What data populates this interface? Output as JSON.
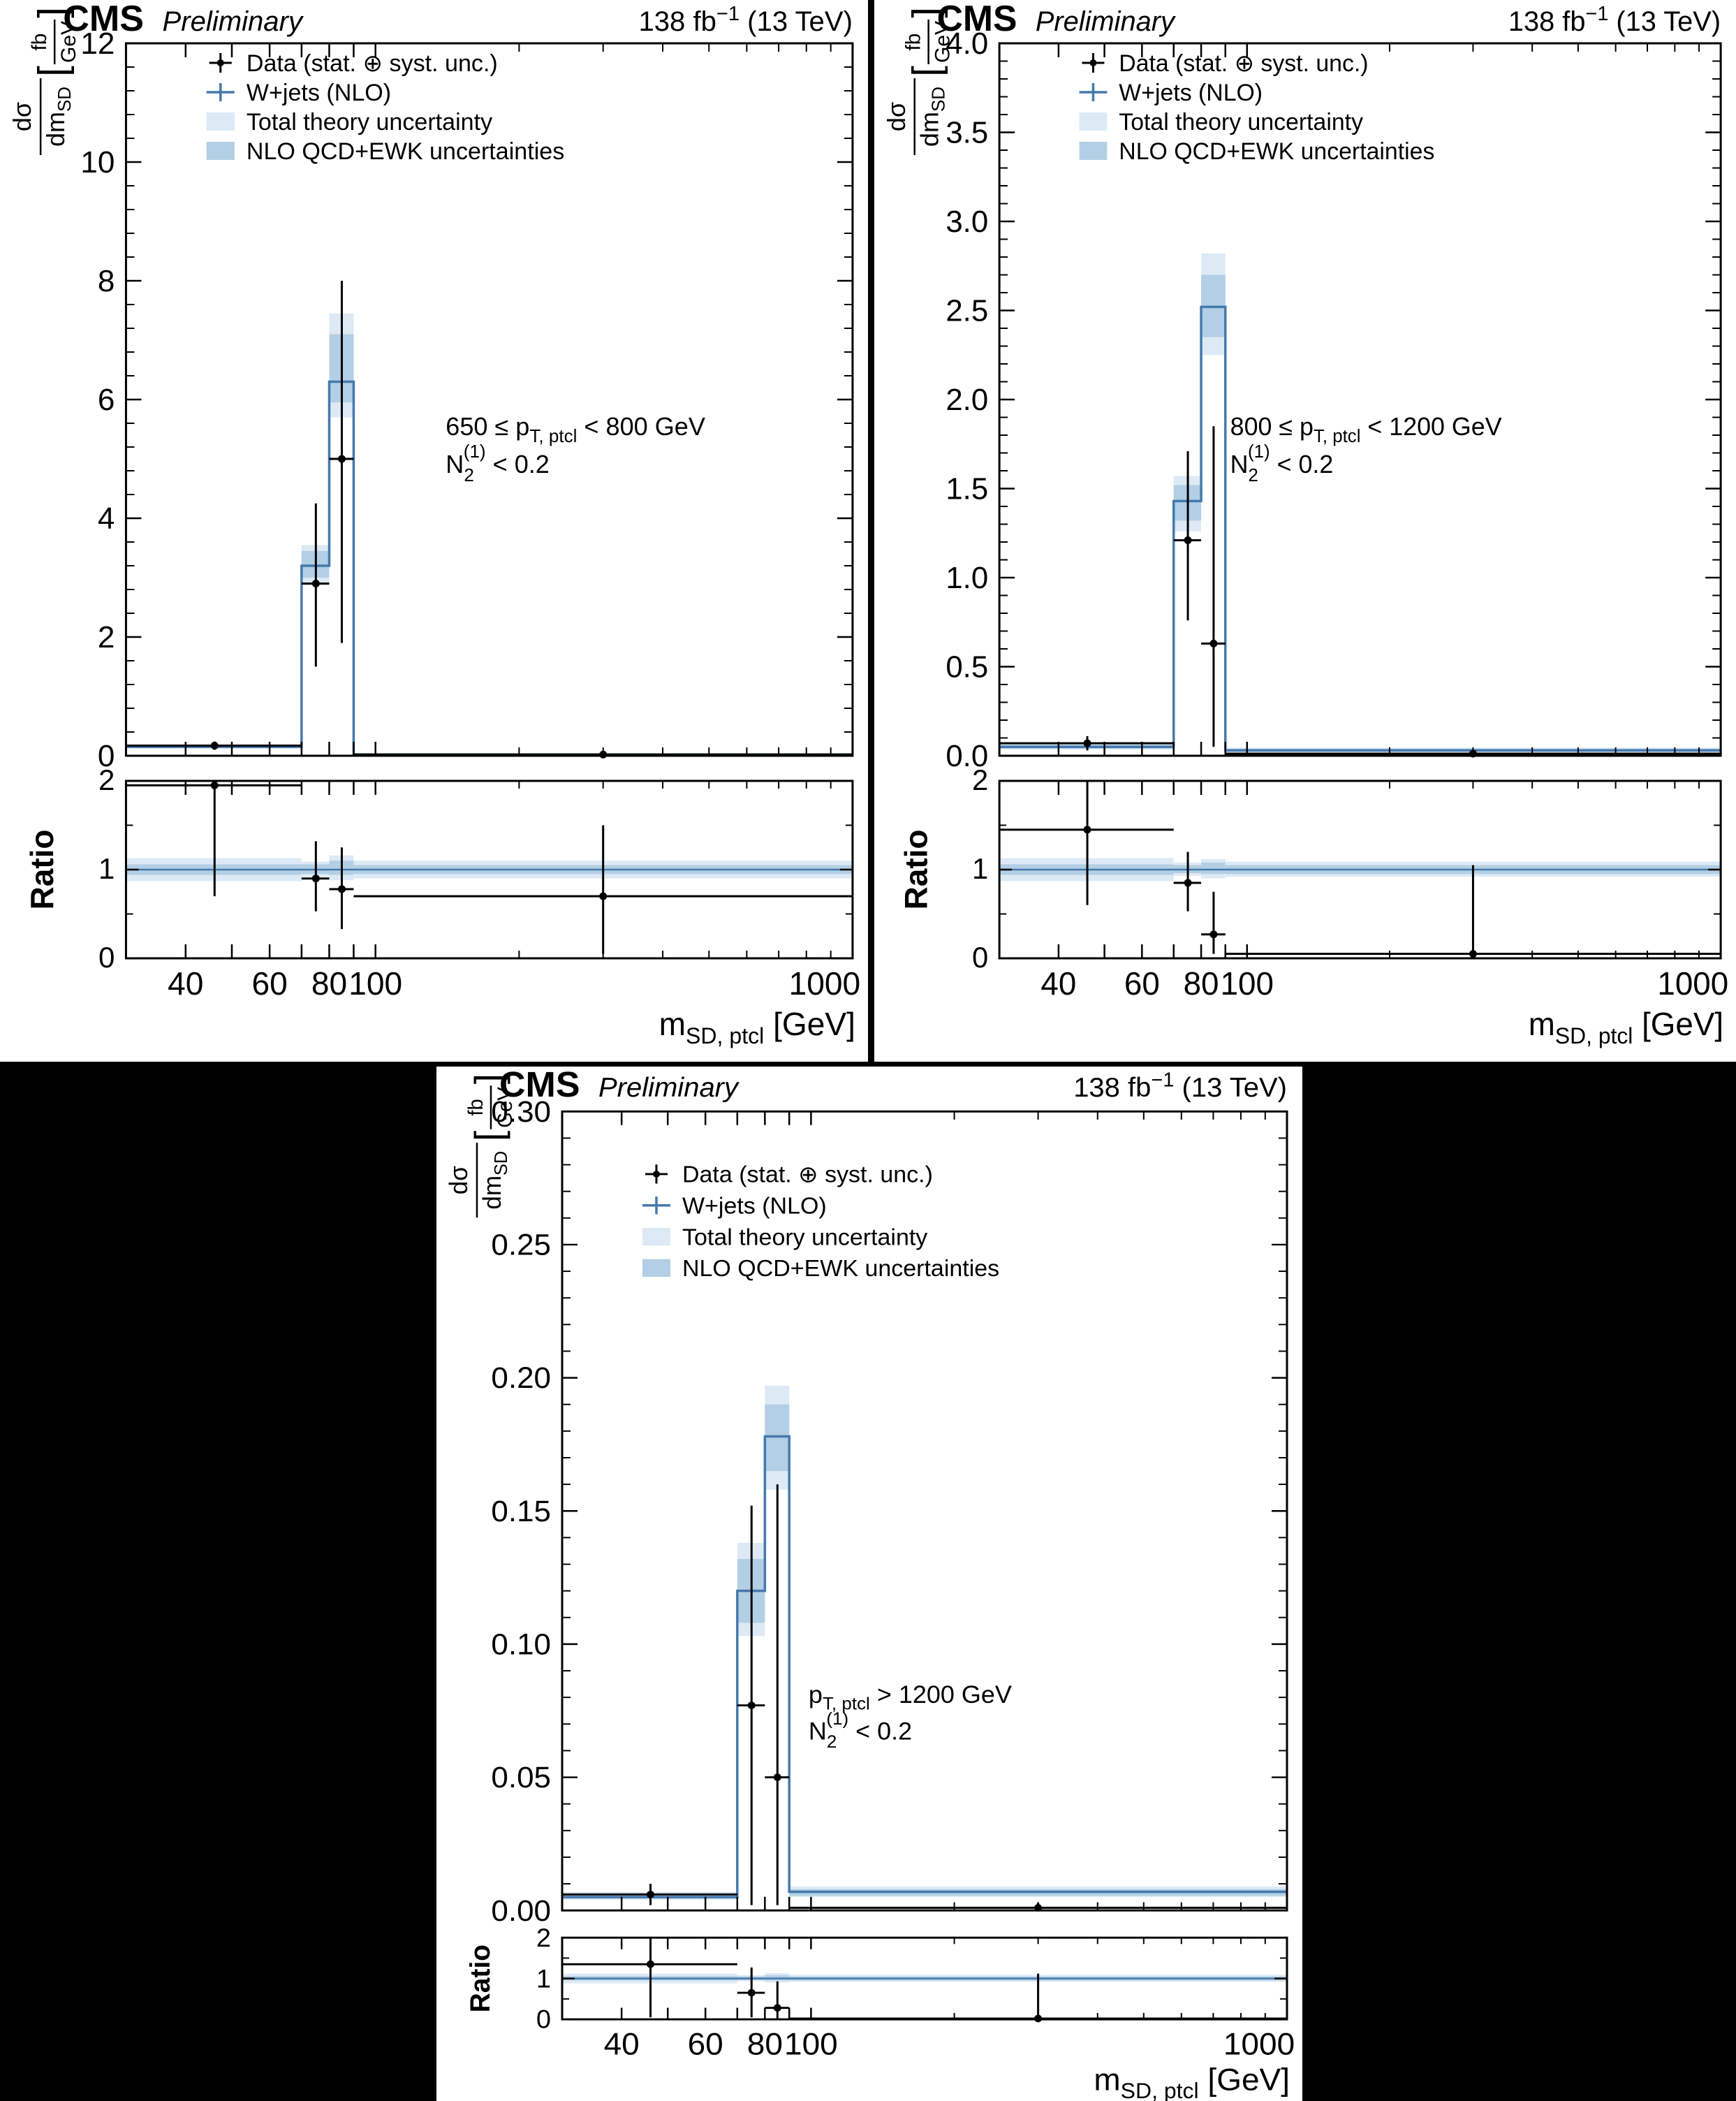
{
  "page": {
    "background": "#000000",
    "panel_background": "#ffffff"
  },
  "colors": {
    "histogram_line": "#4579ad",
    "band_total": "#ddeaf5",
    "band_nlo": "#b3cfe5",
    "data_marker": "#000000"
  },
  "shared": {
    "header": {
      "experiment": "CMS",
      "label": "Preliminary",
      "lumi_main": "138 fb",
      "lumi_sup": "−1",
      "lumi_rest": " (13 TeV)"
    },
    "legend": [
      "Data (stat. ⊕ syst. unc.)",
      "W+jets (NLO)",
      "Total theory uncertainty",
      "NLO QCD+EWK uncertainties"
    ],
    "ylabel": {
      "num": "dσ",
      "den_main": "dm",
      "den_sub": "SD",
      "unit_num": "fb",
      "unit_den": "GeV"
    },
    "xlabel": {
      "main": "m",
      "sub": "SD, ptcl",
      "rest": " [GeV]"
    },
    "ratio_label": "Ratio",
    "xlim": [
      30,
      1000
    ],
    "xticks_labels": [
      40,
      60,
      80,
      100,
      1000
    ],
    "xticks_long": [
      40,
      50,
      60,
      70,
      80,
      90,
      100
    ],
    "xticks_short": [
      200,
      300,
      400,
      500,
      600,
      700,
      800,
      900
    ],
    "ratio_ylim": [
      0,
      2
    ],
    "ratio_yticks": [
      0,
      1,
      2
    ]
  },
  "chart_data": [
    {
      "name": "pt-650-800",
      "type": "bar",
      "title": "CMS Preliminary 138 fb−1 (13 TeV)",
      "xlabel": "m_SD,ptcl [GeV]",
      "ylabel": "dσ/dm_SD [fb/GeV]",
      "xscale": "log",
      "ylim": [
        0,
        12
      ],
      "ystep": 2,
      "ydecimals": 0,
      "bin_edges": [
        30,
        70,
        80,
        90,
        1000
      ],
      "wjets": [
        0.15,
        3.2,
        6.3,
        0.02
      ],
      "band_total_lo": [
        0.12,
        2.88,
        5.7,
        0.01
      ],
      "band_total_hi": [
        0.18,
        3.55,
        7.45,
        0.035
      ],
      "band_nlo_lo": [
        0.13,
        3.0,
        5.95,
        0.015
      ],
      "band_nlo_hi": [
        0.17,
        3.45,
        7.1,
        0.03
      ],
      "data": {
        "x": [
          46,
          75,
          85,
          300
        ],
        "y": [
          0.17,
          2.9,
          5.0,
          0.02
        ],
        "err_lo": [
          0.07,
          1.4,
          3.1,
          0.018
        ],
        "err_hi": [
          0.07,
          1.35,
          3.0,
          0.02
        ]
      },
      "ratio": {
        "y": [
          1.95,
          0.9,
          0.78,
          0.7
        ],
        "err_lo": [
          1.25,
          0.37,
          0.45,
          0.65
        ],
        "err_hi": [
          0.6,
          0.42,
          0.47,
          0.8
        ]
      },
      "ratio_band_total": [
        [
          0.87,
          1.13
        ],
        [
          0.92,
          1.09
        ],
        [
          0.88,
          1.16
        ],
        [
          0.9,
          1.1
        ]
      ],
      "ratio_band_nlo": [
        [
          0.94,
          1.06
        ],
        [
          0.95,
          1.06
        ],
        [
          0.94,
          1.1
        ],
        [
          0.95,
          1.05
        ]
      ],
      "annotation": {
        "line1_pre": "650 ≤ p",
        "line1_sub": "T, ptcl",
        "line1_post": " < 800 GeV",
        "line2_pre": "N",
        "line2_sub": "2",
        "line2_sup": "(1)",
        "line2_post": " < 0.2",
        "fx": 0.44,
        "fy": 0.55
      }
    },
    {
      "name": "pt-800-1200",
      "type": "bar",
      "title": "CMS Preliminary 138 fb−1 (13 TeV)",
      "xlabel": "m_SD,ptcl [GeV]",
      "ylabel": "dσ/dm_SD [fb/GeV]",
      "xscale": "log",
      "ylim": [
        0,
        4
      ],
      "ystep": 0.5,
      "ydecimals": 1,
      "bin_edges": [
        30,
        70,
        80,
        90,
        1000
      ],
      "wjets": [
        0.05,
        1.43,
        2.52,
        0.03
      ],
      "band_total_lo": [
        0.035,
        1.26,
        2.25,
        0.02
      ],
      "band_total_hi": [
        0.07,
        1.57,
        2.82,
        0.045
      ],
      "band_nlo_lo": [
        0.04,
        1.32,
        2.35,
        0.025
      ],
      "band_nlo_hi": [
        0.06,
        1.52,
        2.7,
        0.04
      ],
      "data": {
        "x": [
          46,
          75,
          85,
          300
        ],
        "y": [
          0.07,
          1.21,
          0.63,
          0.012
        ],
        "err_lo": [
          0.04,
          0.45,
          0.58,
          0.01
        ],
        "err_hi": [
          0.04,
          0.5,
          1.22,
          0.015
        ]
      },
      "ratio": {
        "y": [
          1.45,
          0.85,
          0.27,
          0.05
        ],
        "err_lo": [
          0.85,
          0.32,
          0.22,
          0.05
        ],
        "err_hi": [
          0.75,
          0.35,
          0.48,
          1.0
        ]
      },
      "ratio_band_total": [
        [
          0.87,
          1.13
        ],
        [
          0.93,
          1.08
        ],
        [
          0.9,
          1.12
        ],
        [
          0.92,
          1.09
        ]
      ],
      "ratio_band_nlo": [
        [
          0.94,
          1.06
        ],
        [
          0.96,
          1.05
        ],
        [
          0.95,
          1.08
        ],
        [
          0.95,
          1.05
        ]
      ],
      "annotation": {
        "line1_pre": "800 ≤ p",
        "line1_sub": "T, ptcl",
        "line1_post": " < 1200 GeV",
        "line2_pre": "N",
        "line2_sub": "2",
        "line2_sup": "(1)",
        "line2_post": " < 0.2",
        "fx": 0.32,
        "fy": 0.55
      }
    },
    {
      "name": "pt-gt-1200",
      "type": "bar",
      "title": "CMS Preliminary 138 fb−1 (13 TeV)",
      "xlabel": "m_SD,ptcl [GeV]",
      "ylabel": "dσ/dm_SD [fb/GeV]",
      "xscale": "log",
      "ylim": [
        0,
        0.3
      ],
      "ystep": 0.05,
      "ydecimals": 2,
      "bin_edges": [
        30,
        70,
        80,
        90,
        1000
      ],
      "wjets": [
        0.005,
        0.12,
        0.178,
        0.007
      ],
      "band_total_lo": [
        0.004,
        0.103,
        0.158,
        0.005
      ],
      "band_total_hi": [
        0.007,
        0.138,
        0.197,
        0.009
      ],
      "band_nlo_lo": [
        0.0045,
        0.108,
        0.165,
        0.0055
      ],
      "band_nlo_hi": [
        0.0065,
        0.132,
        0.19,
        0.008
      ],
      "data": {
        "x": [
          46,
          75,
          85,
          300
        ],
        "y": [
          0.006,
          0.077,
          0.05,
          0.001
        ],
        "err_lo": [
          0.004,
          0.075,
          0.048,
          0.001
        ],
        "err_hi": [
          0.004,
          0.075,
          0.11,
          0.002
        ]
      },
      "ratio": {
        "y": [
          1.35,
          0.65,
          0.28,
          0.02
        ],
        "err_lo": [
          1.3,
          0.6,
          0.27,
          0.02
        ],
        "err_hi": [
          0.65,
          0.62,
          0.65,
          1.1
        ]
      },
      "ratio_band_total": [
        [
          0.88,
          1.12
        ],
        [
          0.93,
          1.08
        ],
        [
          0.9,
          1.13
        ],
        [
          0.92,
          1.09
        ]
      ],
      "ratio_band_nlo": [
        [
          0.95,
          1.06
        ],
        [
          0.96,
          1.05
        ],
        [
          0.95,
          1.08
        ],
        [
          0.95,
          1.05
        ]
      ],
      "annotation": {
        "line1_pre": "p",
        "line1_sub": "T, ptcl",
        "line1_post": " > 1200 GeV",
        "line2_pre": "N",
        "line2_sub": "2",
        "line2_sup": "(1)",
        "line2_post": " < 0.2",
        "fx": 0.34,
        "fy": 0.74
      }
    }
  ]
}
